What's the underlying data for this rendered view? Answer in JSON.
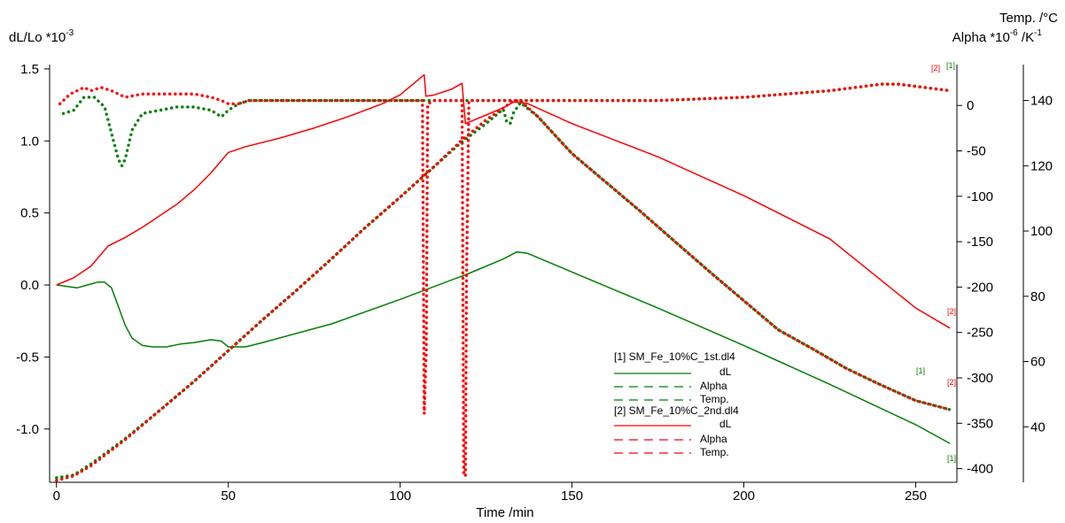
{
  "chart_data": {
    "type": "line",
    "xlabel": "Time /min",
    "ylabel_left": "dL/Lo *10",
    "ylabel_left_exp": "-3",
    "ylabel_right1": "Temp. /°C",
    "ylabel_right2_base": "Alpha *10",
    "ylabel_right2_exp": "-6",
    "ylabel_right2_unit": " /K",
    "ylabel_right2_unit_exp": "-1",
    "x_range": [
      -2,
      262
    ],
    "x_ticks": [
      0,
      50,
      100,
      150,
      200,
      250
    ],
    "left_range": [
      -1.37,
      1.53
    ],
    "left_ticks": [
      -1.0,
      -0.5,
      0.0,
      0.5,
      1.0,
      1.5
    ],
    "left_tick_labels": [
      "-1.0",
      "-0.5",
      "0.0",
      "0.5",
      "1.0",
      "1.5"
    ],
    "mid_range": [
      -415,
      45
    ],
    "mid_ticks": [
      0,
      -50,
      -100,
      -150,
      -200,
      -250,
      -300,
      -350,
      -400
    ],
    "right_range": [
      23,
      151
    ],
    "right_ticks": [
      140,
      120,
      100,
      80,
      60,
      40
    ],
    "colors": {
      "run1": "#008000",
      "run2": "#ff0000"
    },
    "legend": {
      "run1_name": "[1] SM_Fe_10%C_1st.dl4",
      "run2_name": "[2] SM_Fe_10%C_2nd.dl4",
      "entries": [
        "dL",
        "Alpha",
        "Temp."
      ]
    },
    "end_labels": {
      "run1": "[1]",
      "run2": "[2]"
    },
    "series": [
      {
        "name": "dL",
        "run": 1,
        "axis": "left",
        "style": "solid",
        "x": [
          0,
          3,
          6,
          9,
          12,
          14,
          16,
          18,
          20,
          22,
          25,
          28,
          32,
          36,
          40,
          45,
          48,
          50,
          52,
          55,
          60,
          80,
          100,
          120,
          130,
          134,
          137,
          150,
          175,
          200,
          225,
          250,
          260
        ],
        "y": [
          0.0,
          -0.01,
          -0.02,
          0.0,
          0.02,
          0.02,
          -0.02,
          -0.15,
          -0.28,
          -0.37,
          -0.42,
          -0.43,
          -0.43,
          -0.41,
          -0.4,
          -0.38,
          -0.39,
          -0.43,
          -0.43,
          -0.43,
          -0.4,
          -0.27,
          -0.1,
          0.08,
          0.18,
          0.23,
          0.22,
          0.09,
          -0.16,
          -0.42,
          -0.69,
          -0.97,
          -1.1
        ]
      },
      {
        "name": "dL",
        "run": 2,
        "axis": "left",
        "style": "solid",
        "x": [
          0,
          5,
          10,
          15,
          20,
          25,
          30,
          35,
          40,
          45,
          50,
          55,
          65,
          75,
          85,
          95,
          100,
          107,
          107.5,
          110,
          115,
          118,
          119,
          120,
          125,
          130,
          133,
          137,
          150,
          175,
          200,
          225,
          250,
          260
        ],
        "y": [
          0.0,
          0.05,
          0.13,
          0.27,
          0.33,
          0.4,
          0.48,
          0.56,
          0.66,
          0.78,
          0.92,
          0.96,
          1.02,
          1.09,
          1.17,
          1.26,
          1.32,
          1.46,
          1.31,
          1.32,
          1.36,
          1.4,
          1.12,
          1.13,
          1.18,
          1.23,
          1.27,
          1.26,
          1.12,
          0.89,
          0.62,
          0.32,
          -0.16,
          -0.3
        ]
      },
      {
        "name": "Alpha",
        "run": 1,
        "axis": "right",
        "style": "dotted",
        "x": [
          2,
          5,
          8,
          11,
          14,
          16,
          18,
          19,
          20,
          22,
          25,
          30,
          35,
          40,
          45,
          48,
          50,
          53,
          56,
          60,
          80,
          100,
          120,
          130,
          133,
          136,
          150,
          175,
          200,
          225,
          240,
          245,
          260
        ],
        "y": [
          136,
          137,
          141,
          141,
          138,
          130,
          122,
          120,
          122,
          131,
          136,
          137,
          138,
          138,
          137,
          135,
          137,
          139,
          140,
          140,
          140,
          140,
          140,
          140,
          140,
          140,
          140,
          140,
          141,
          143,
          145,
          145,
          143
        ]
      },
      {
        "name": "Alpha",
        "run": 2,
        "axis": "right",
        "style": "dotted",
        "x": [
          1,
          4,
          8,
          10,
          13,
          16,
          20,
          25,
          30,
          35,
          40,
          45,
          48,
          50,
          53,
          56,
          60,
          80,
          100,
          106.5,
          107,
          107.6,
          108,
          110,
          118,
          118.5,
          119,
          119.3,
          120,
          122,
          130,
          150,
          175,
          200,
          225,
          240,
          245,
          260
        ],
        "y": [
          139,
          142,
          144,
          143,
          144,
          143,
          141,
          142,
          142,
          142,
          142,
          141,
          140,
          139,
          139,
          140,
          140,
          140,
          140,
          140,
          44,
          64,
          139,
          140,
          140,
          25,
          25,
          85,
          140,
          140,
          140,
          140,
          140,
          141,
          143,
          145,
          145,
          143
        ]
      },
      {
        "name": "Temp.",
        "run": 1,
        "axis": "mid",
        "style": "dotted",
        "x": [
          0,
          5,
          10,
          20,
          30,
          40,
          50,
          60,
          70,
          80,
          90,
          100,
          110,
          118,
          125,
          130,
          131,
          132,
          133,
          135,
          140,
          150,
          160,
          170,
          180,
          190,
          200,
          210,
          220,
          230,
          240,
          250,
          260
        ],
        "y": [
          -410,
          -407,
          -395,
          -367,
          -336,
          -304,
          -270,
          -236,
          -203,
          -169,
          -134,
          -101,
          -67,
          -40,
          -20,
          -4,
          -18,
          -20,
          -8,
          3,
          -12,
          -53,
          -85,
          -117,
          -150,
          -183,
          -215,
          -247,
          -268,
          -290,
          -308,
          -325,
          -335
        ]
      },
      {
        "name": "Temp.",
        "run": 2,
        "axis": "mid",
        "style": "dotted",
        "x": [
          0,
          5,
          10,
          20,
          30,
          40,
          50,
          60,
          70,
          80,
          90,
          100,
          110,
          118,
          125,
          133,
          135,
          140,
          150,
          160,
          170,
          180,
          190,
          200,
          210,
          220,
          230,
          240,
          250,
          260
        ],
        "y": [
          -413,
          -408,
          -397,
          -368,
          -336,
          -304,
          -270,
          -236,
          -203,
          -169,
          -134,
          -101,
          -67,
          -38,
          -16,
          5,
          5,
          -12,
          -53,
          -85,
          -117,
          -150,
          -183,
          -215,
          -247,
          -268,
          -290,
          -308,
          -325,
          -335
        ]
      }
    ]
  }
}
